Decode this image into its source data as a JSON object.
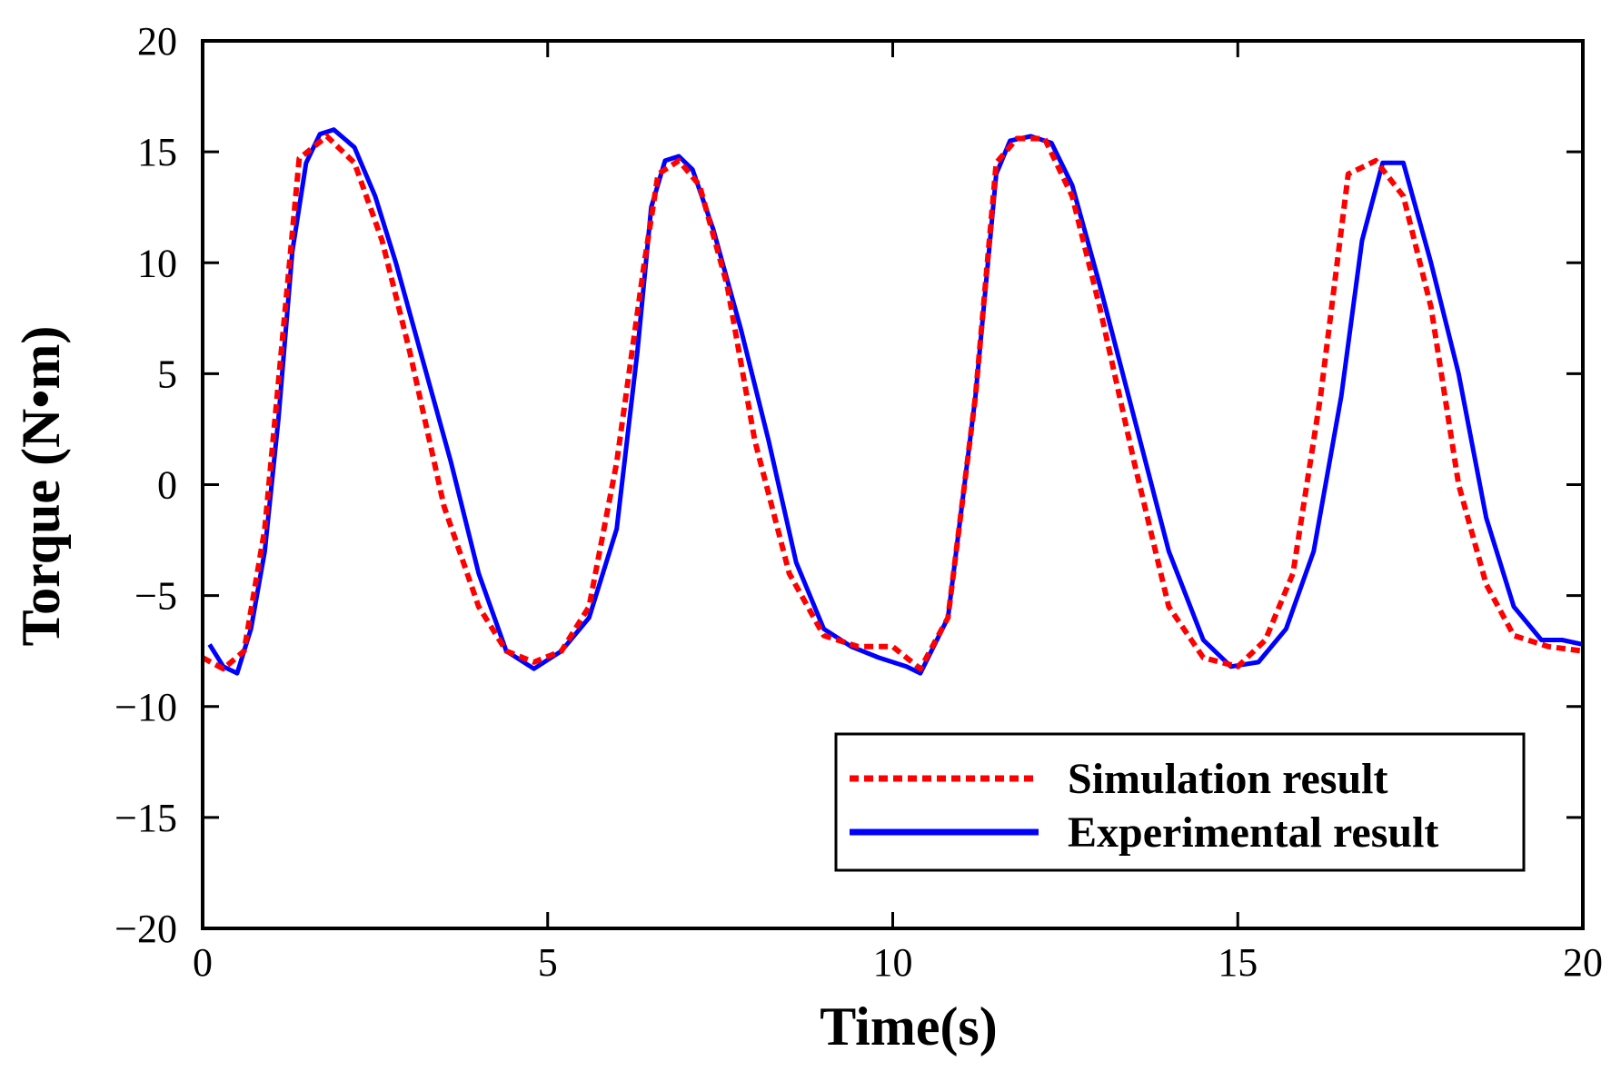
{
  "chart_data": {
    "type": "line",
    "title": "",
    "xlabel": "Time(s)",
    "ylabel": "Torque (N•m)",
    "xlim": [
      0,
      20
    ],
    "ylim": [
      -20,
      20
    ],
    "xticks": [
      0,
      5,
      10,
      15,
      20
    ],
    "yticks": [
      -20,
      -15,
      -10,
      -5,
      0,
      5,
      10,
      15,
      20
    ],
    "xtick_labels": [
      "0",
      "5",
      "10",
      "15",
      "20"
    ],
    "ytick_labels": [
      "−20",
      "−15",
      "−10",
      "−5",
      "0",
      "5",
      "10",
      "15",
      "20"
    ],
    "grid": false,
    "legend_position": "bottom-right",
    "series": [
      {
        "name": "Simulation result",
        "color": "#ff0000",
        "style": "dashed",
        "x": [
          0,
          0.3,
          0.6,
          0.9,
          1.2,
          1.4,
          1.8,
          2.2,
          2.6,
          3.0,
          3.5,
          4.0,
          4.4,
          4.8,
          5.2,
          5.6,
          6.0,
          6.4,
          6.6,
          6.9,
          7.2,
          7.6,
          8.0,
          8.5,
          9.0,
          9.5,
          10.0,
          10.4,
          10.8,
          11.2,
          11.5,
          11.8,
          12.2,
          12.6,
          13.0,
          13.5,
          14.0,
          14.5,
          15.0,
          15.4,
          15.8,
          16.2,
          16.6,
          17.0,
          17.4,
          17.8,
          18.2,
          18.6,
          19.0,
          19.5,
          20.0
        ],
        "y": [
          -7.8,
          -8.3,
          -7.5,
          -2,
          8,
          14.7,
          15.7,
          14.5,
          11,
          6,
          -1,
          -5.5,
          -7.5,
          -8,
          -7.5,
          -5.5,
          1,
          10,
          14,
          14.6,
          13.5,
          9,
          2,
          -4,
          -6.8,
          -7.3,
          -7.3,
          -8.3,
          -6,
          4,
          14.5,
          15.6,
          15.6,
          13,
          8,
          1,
          -5.5,
          -7.8,
          -8.2,
          -7,
          -4,
          4,
          14,
          14.6,
          13,
          8,
          0,
          -4.5,
          -6.8,
          -7.3,
          -7.5
        ]
      },
      {
        "name": "Experimental result",
        "color": "#0000ff",
        "style": "solid",
        "x": [
          0.1,
          0.3,
          0.5,
          0.7,
          0.9,
          1.1,
          1.3,
          1.5,
          1.7,
          1.9,
          2.2,
          2.5,
          2.8,
          3.2,
          3.6,
          4.0,
          4.4,
          4.8,
          5.2,
          5.6,
          6.0,
          6.3,
          6.5,
          6.7,
          6.9,
          7.1,
          7.4,
          7.8,
          8.2,
          8.6,
          9.0,
          9.4,
          9.8,
          10.2,
          10.4,
          10.8,
          11.2,
          11.5,
          11.7,
          12.0,
          12.3,
          12.6,
          13.0,
          13.5,
          14.0,
          14.5,
          14.9,
          15.3,
          15.7,
          16.1,
          16.5,
          16.8,
          17.1,
          17.4,
          17.8,
          18.2,
          18.6,
          19.0,
          19.4,
          19.7,
          20.0
        ],
        "y": [
          -7.2,
          -8.2,
          -8.5,
          -6.5,
          -3,
          3,
          10.5,
          14.5,
          15.8,
          16.0,
          15.2,
          13,
          10,
          5.5,
          1,
          -4,
          -7.5,
          -8.3,
          -7.5,
          -6,
          -2,
          6,
          12.5,
          14.6,
          14.8,
          14.2,
          11.5,
          7,
          2,
          -3.5,
          -6.5,
          -7.3,
          -7.8,
          -8.2,
          -8.5,
          -6,
          4,
          14,
          15.5,
          15.7,
          15.4,
          13.5,
          9,
          3,
          -3,
          -7,
          -8.2,
          -8,
          -6.5,
          -3,
          4,
          11,
          14.5,
          14.5,
          10,
          5,
          -1.5,
          -5.5,
          -7,
          -7,
          -7.2
        ]
      }
    ]
  }
}
